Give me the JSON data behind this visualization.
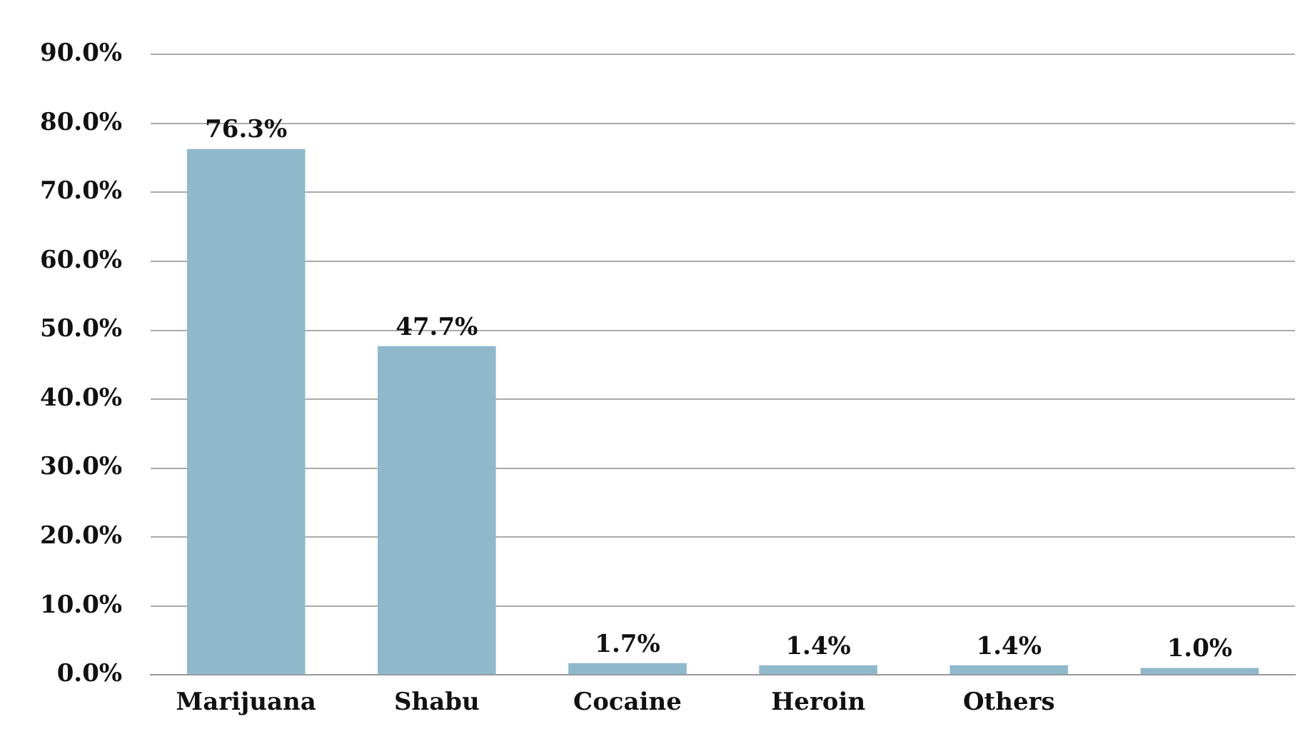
{
  "chart_data": {
    "type": "bar",
    "categories": [
      "Marijuana",
      "Shabu",
      "Cocaine",
      "Heroin",
      "Others",
      null
    ],
    "values": [
      76.3,
      47.7,
      1.7,
      1.4,
      1.4,
      1.0
    ],
    "value_labels": [
      "76.3%",
      "47.7%",
      "1.7%",
      "1.4%",
      "1.4%",
      "1.0%"
    ],
    "color": "#8fb9cb",
    "ylim": [
      0,
      90
    ],
    "yticks": [
      {
        "value": 0,
        "label": "0.0%"
      },
      {
        "value": 10,
        "label": "10.0%"
      },
      {
        "value": 20,
        "label": "20.0%"
      },
      {
        "value": 30,
        "label": "30.0%"
      },
      {
        "value": 40,
        "label": "40.0%"
      },
      {
        "value": 50,
        "label": "50.0%"
      },
      {
        "value": 60,
        "label": "60.0%"
      },
      {
        "value": 70,
        "label": "70.0%"
      },
      {
        "value": 80,
        "label": "80.0%"
      },
      {
        "value": 90,
        "label": "90.0%"
      }
    ],
    "grid": "y"
  }
}
